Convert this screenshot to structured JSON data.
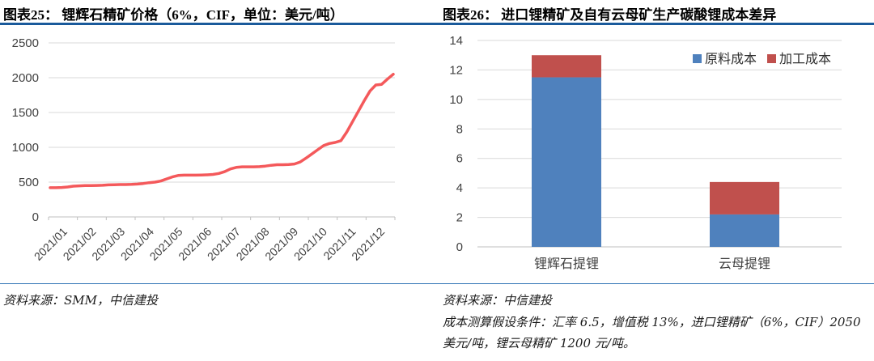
{
  "styles": {
    "accent_rule_color": "#1a5a9b",
    "thin_rule_color": "#2f74b5",
    "gridline_color": "#d9d9d9",
    "axis_color": "#bfbfbf",
    "tick_label_color": "#404040"
  },
  "chart_data": [
    {
      "type": "line",
      "title": "图表25：  锂辉石精矿价格（6%，CIF，单位：美元/吨）",
      "source": "资料来源：SMM，中信建投",
      "xlabel": "",
      "ylabel": "",
      "ylim": [
        0,
        2500
      ],
      "yticks": [
        0,
        500,
        1000,
        1500,
        2000,
        2500
      ],
      "grid": true,
      "x_tick_labels": [
        "2021/01",
        "2021/02",
        "2021/03",
        "2021/04",
        "2021/05",
        "2021/06",
        "2021/07",
        "2021/08",
        "2021/09",
        "2021/10",
        "2021/11",
        "2021/12"
      ],
      "series": [
        {
          "name": "锂辉石精矿价格（美元/吨）",
          "color": "#f4595b",
          "values": [
            420,
            420,
            423,
            430,
            442,
            447,
            450,
            450,
            452,
            455,
            460,
            463,
            465,
            465,
            467,
            472,
            480,
            492,
            500,
            515,
            545,
            575,
            595,
            600,
            600,
            600,
            602,
            605,
            610,
            625,
            650,
            690,
            712,
            720,
            720,
            720,
            722,
            730,
            742,
            750,
            750,
            754,
            760,
            790,
            845,
            905,
            965,
            1025,
            1055,
            1070,
            1095,
            1220,
            1370,
            1520,
            1670,
            1810,
            1895,
            1905,
            1980,
            2050
          ]
        }
      ]
    },
    {
      "type": "bar",
      "subtype": "stacked",
      "title": "图表26：  进口锂精矿及自有云母矿生产碳酸锂成本差异",
      "source": "资料来源：中信建投",
      "note": "成本测算假设条件：汇率 6.5，增值税 13%，进口锂精矿（6%，CIF）2050 美元/吨，锂云母精矿 1200 元/吨。",
      "categories": [
        "锂辉石提锂",
        "云母提锂"
      ],
      "ylim": [
        0,
        14
      ],
      "yticks": [
        0,
        2,
        4,
        6,
        8,
        10,
        12,
        14
      ],
      "grid": true,
      "legend_position": "top-right",
      "series": [
        {
          "name": "原料成本",
          "color": "#4f81bd",
          "values": [
            11.5,
            2.2
          ]
        },
        {
          "name": "加工成本",
          "color": "#c0504d",
          "values": [
            1.5,
            2.2
          ]
        }
      ]
    }
  ]
}
